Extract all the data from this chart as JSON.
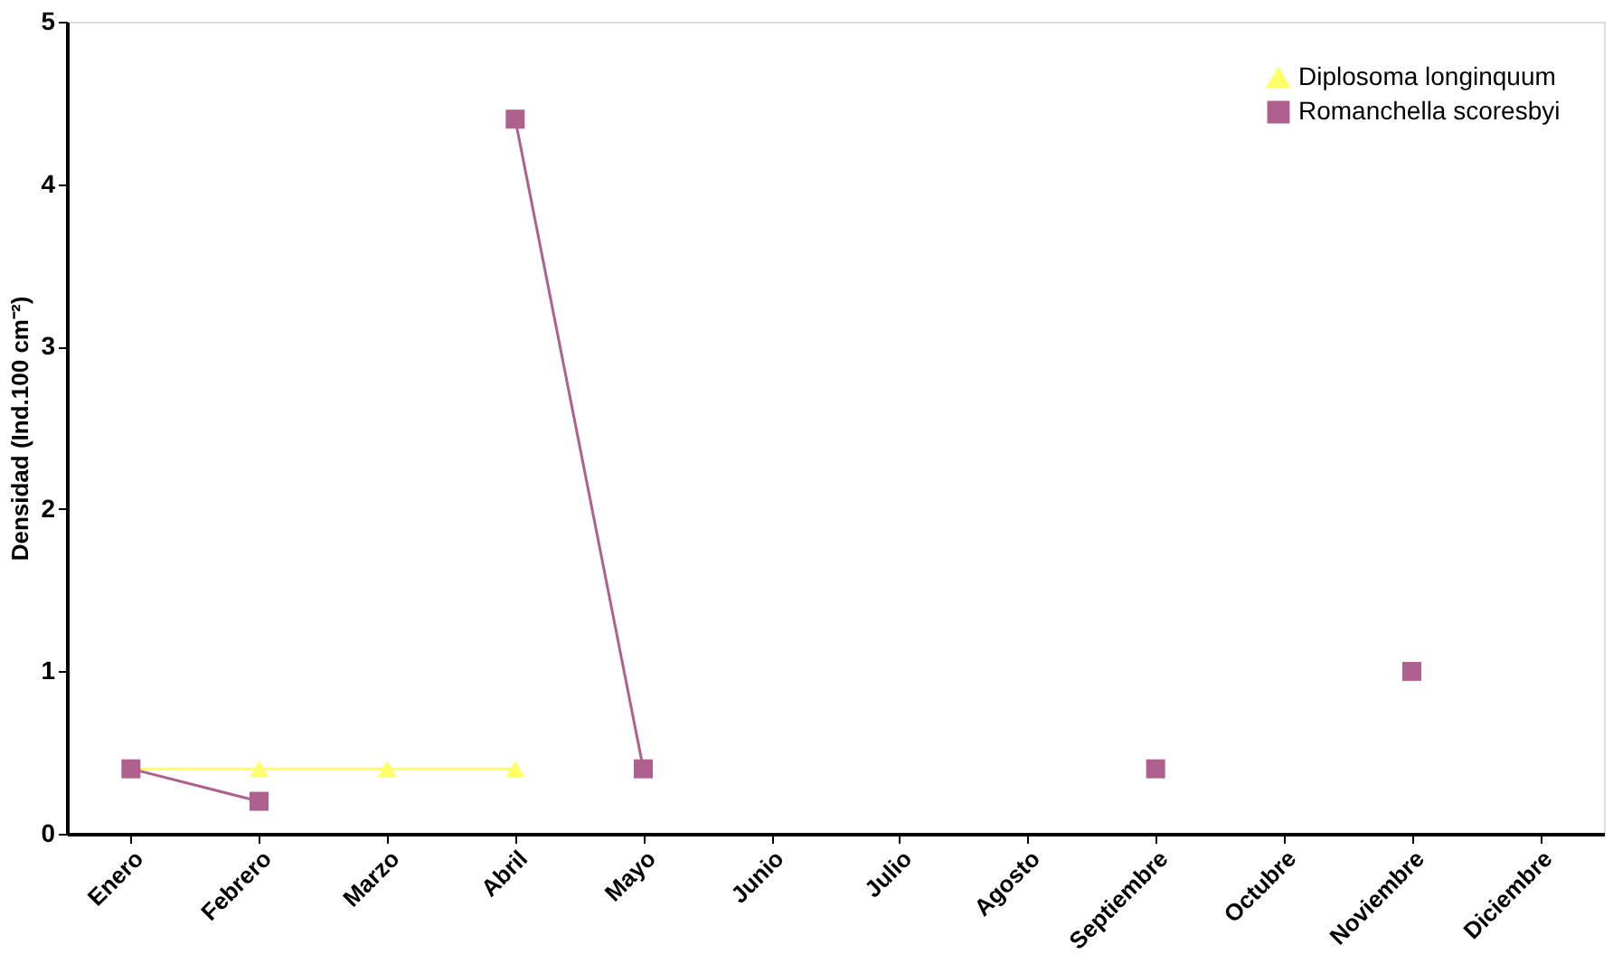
{
  "chart_data": {
    "type": "line",
    "ylabel": "Densidad (Ind.100 cm⁻²)",
    "categories": [
      "Enero",
      "Febrero",
      "Marzo",
      "Abril",
      "Mayo",
      "Junio",
      "Julio",
      "Agosto",
      "Septiembre",
      "Octubre",
      "Noviembre",
      "Diciembre"
    ],
    "series": [
      {
        "name": "Diplosoma longinquum",
        "color": "#ffff66",
        "marker": "triangle",
        "values": [
          0.4,
          0.4,
          0.4,
          0.4,
          null,
          null,
          null,
          null,
          null,
          null,
          null,
          null
        ]
      },
      {
        "name": "Romanchella scoresbyi",
        "color": "#b0608f",
        "marker": "square",
        "values": [
          0.4,
          0.2,
          null,
          4.4,
          0.4,
          null,
          null,
          null,
          0.4,
          null,
          1.0,
          null
        ]
      }
    ],
    "ylim": [
      0,
      5
    ],
    "yticks": [
      0,
      1,
      2,
      3,
      4,
      5
    ],
    "grid": false,
    "legend": "top right",
    "line_style": "solid"
  }
}
